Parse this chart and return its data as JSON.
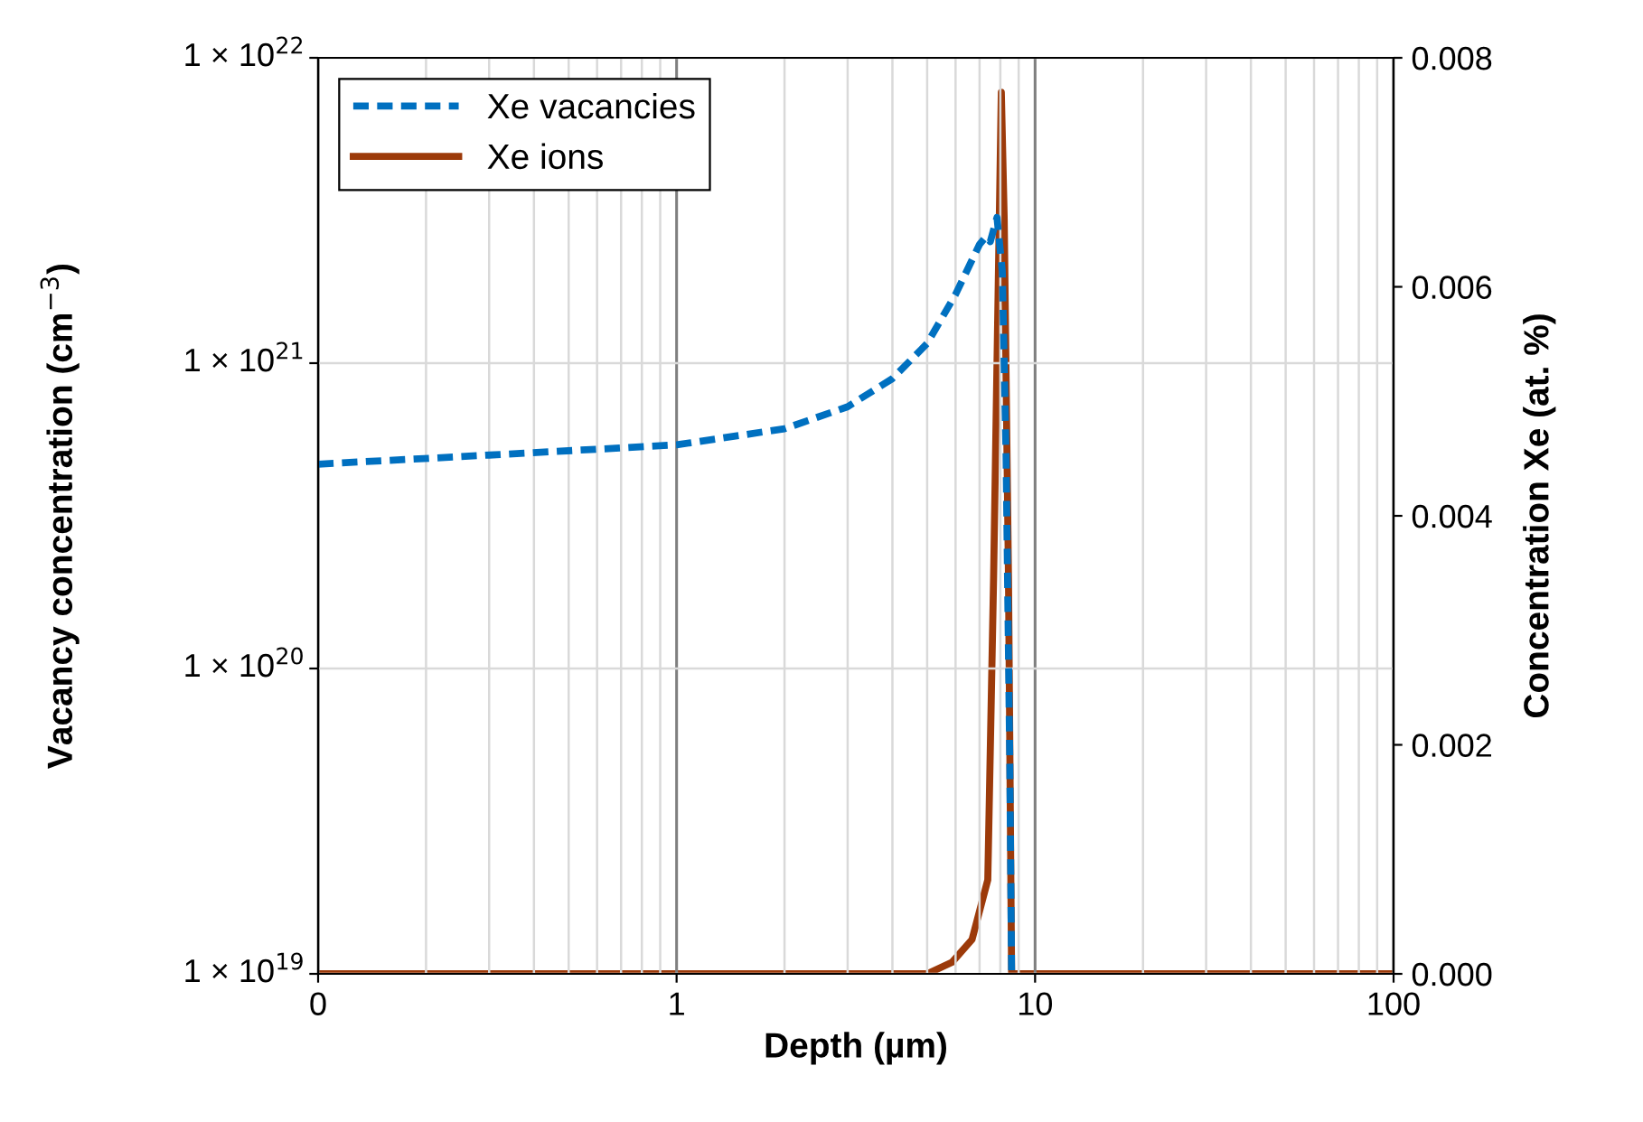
{
  "chart_data": {
    "type": "line",
    "xlabel": "Depth (µm)",
    "ylabel": "Vacancy concentration (cm$^{−3}$)",
    "y2label": "Concentration Xe (at. %)",
    "log": "xy",
    "xlim": [
      0.1,
      100
    ],
    "xticks": [
      {
        "value": 0.1,
        "label": "0"
      },
      1,
      10,
      100
    ],
    "ylim": [
      1e+19,
      1e+22
    ],
    "yticks": [
      {
        "value": 1e+19,
        "label": "1 × 10$^{19}$"
      },
      {
        "value": 1e+20,
        "label": "1 × 10$^{20}$"
      },
      {
        "value": 1e+21,
        "label": "1 × 10$^{21}$"
      },
      {
        "value": 1e+22,
        "label": "1 × 10$^{22}$"
      }
    ],
    "y2lim": [
      0,
      0.008
    ],
    "y2ticks": [
      {
        "value": 0,
        "label": "0.000"
      },
      {
        "value": 0.002,
        "label": "0.002"
      },
      {
        "value": 0.004,
        "label": "0.004"
      },
      {
        "value": 0.006,
        "label": "0.006"
      },
      {
        "value": 0.008,
        "label": "0.008"
      }
    ],
    "grid": true,
    "legend": "top left",
    "marker": "none",
    "series": [
      {
        "name": "Xe vacancies",
        "color": "#0070c0",
        "line_style": "dashed",
        "x": [
          0.1,
          0.3,
          1,
          2,
          3,
          4,
          5,
          6,
          7,
          7.3,
          7.5,
          7.83,
          8.1,
          8.3,
          8.5,
          8.6
        ],
        "values": [
          4.67e+20,
          5e+20,
          5.4e+20,
          6.1e+20,
          7.2e+20,
          8.9e+20,
          1.16e+21,
          1.68e+21,
          2.45e+21,
          2.6e+21,
          2.5e+21,
          3e+21,
          2e+21,
          5e+20,
          5e+19,
          1e+19
        ]
      },
      {
        "name": "Xe ions",
        "color": "#9c3a0a",
        "line_style": "solid",
        "axis": "y2",
        "x": [
          0.1,
          5,
          5.86,
          6.67,
          7.38,
          7.66,
          8.05,
          8.2,
          8.43,
          8.6,
          100
        ],
        "values": [
          0,
          0,
          0.0001,
          0.0003,
          0.00082,
          0.00345,
          0.0077,
          0.0066,
          0.00345,
          0,
          0
        ]
      }
    ]
  }
}
